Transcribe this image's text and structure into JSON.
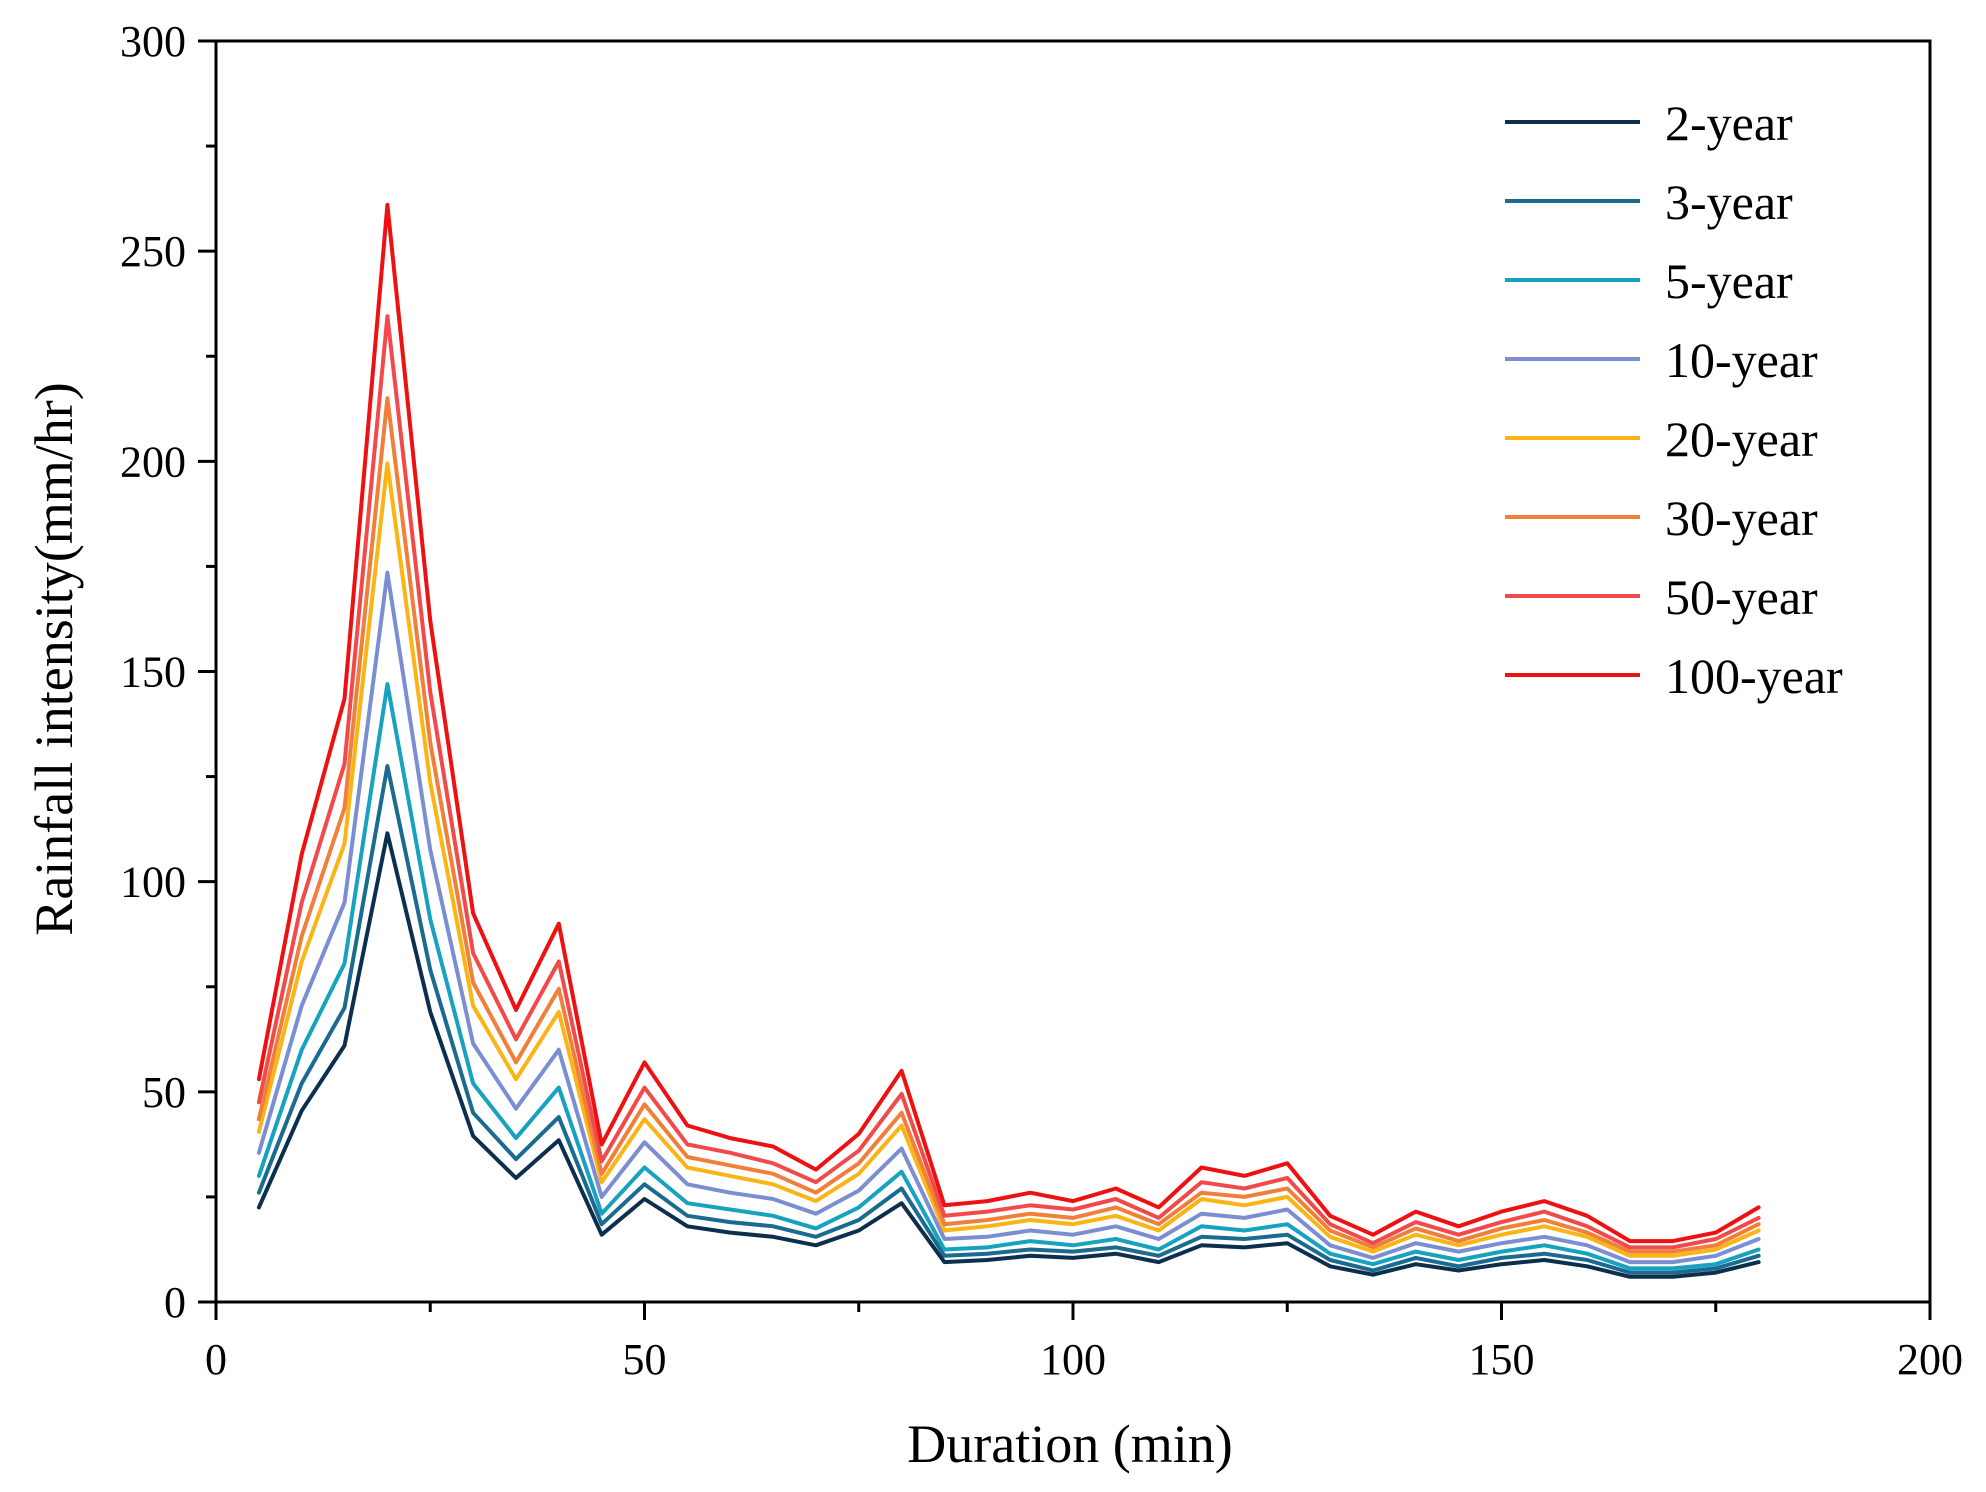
{
  "chart_data": {
    "type": "line",
    "title": "",
    "xlabel": "Duration (min)",
    "ylabel": "Rainfall intensity(mm/hr)",
    "xlim": [
      0,
      200
    ],
    "ylim": [
      0,
      300
    ],
    "xticks": [
      0,
      50,
      100,
      150,
      200
    ],
    "yticks": [
      0,
      50,
      100,
      150,
      200,
      250,
      300
    ],
    "grid": false,
    "legend_position": "top-right",
    "x": [
      5,
      10,
      15,
      20,
      25,
      30,
      35,
      40,
      45,
      50,
      55,
      60,
      65,
      70,
      75,
      80,
      85,
      90,
      95,
      100,
      105,
      110,
      115,
      120,
      125,
      130,
      135,
      140,
      145,
      150,
      155,
      160,
      165,
      170,
      175,
      180
    ],
    "series": [
      {
        "name": "2-year",
        "color": "#0d2f4f",
        "values": [
          22.5,
          45.5,
          61,
          111.5,
          69,
          39.5,
          29.5,
          38.5,
          16,
          24.5,
          18,
          16.5,
          15.5,
          13.5,
          17,
          23.5,
          9.5,
          10,
          11,
          10.5,
          11.5,
          9.5,
          13.5,
          13,
          14,
          8.5,
          6.5,
          9,
          7.5,
          9,
          10,
          8.5,
          6,
          6,
          7,
          9.5
        ]
      },
      {
        "name": "3-year",
        "color": "#1a6b8f",
        "values": [
          26,
          52,
          70,
          127.5,
          79,
          45,
          34,
          44,
          18.5,
          28,
          20.5,
          19,
          18,
          15.5,
          19.5,
          27,
          11,
          11.5,
          12.5,
          12,
          13,
          11,
          15.5,
          15,
          16,
          10,
          7.5,
          10.5,
          8.5,
          10.5,
          11.5,
          10,
          7,
          7,
          8,
          11
        ]
      },
      {
        "name": "5-year",
        "color": "#17a2c0",
        "values": [
          30,
          60,
          80.5,
          147,
          91,
          52,
          39,
          51,
          21,
          32,
          23.5,
          22,
          20.5,
          17.5,
          22.5,
          31,
          12.5,
          13,
          14.5,
          13.5,
          15,
          12.5,
          18,
          17,
          18.5,
          11.5,
          9,
          12,
          10,
          12,
          13.5,
          11.5,
          8,
          8,
          9,
          12.5
        ]
      },
      {
        "name": "10-year",
        "color": "#7b8ed1",
        "values": [
          35.5,
          70.5,
          95,
          173.5,
          107.5,
          61.5,
          46,
          60,
          25,
          38,
          28,
          26,
          24.5,
          21,
          26.5,
          36.5,
          15,
          15.5,
          17,
          16,
          18,
          15,
          21,
          20,
          22,
          13.5,
          10.5,
          14,
          12,
          14,
          15.5,
          13.5,
          9.5,
          9.5,
          11,
          15
        ]
      },
      {
        "name": "20-year",
        "color": "#fbb416",
        "values": [
          40.5,
          81,
          109,
          199.5,
          123.5,
          70.5,
          53,
          69,
          28.5,
          43.5,
          32,
          30,
          28,
          24,
          30.5,
          42,
          17,
          18,
          19.5,
          18.5,
          20.5,
          17,
          24.5,
          23,
          25,
          15.5,
          12,
          16,
          13.5,
          16,
          18,
          15.5,
          11,
          11,
          12.5,
          17
        ]
      },
      {
        "name": "30-year",
        "color": "#f07f3c",
        "values": [
          43.5,
          87,
          117.5,
          215,
          133,
          76,
          57,
          74.5,
          30.5,
          47,
          34.5,
          32.5,
          30.5,
          26,
          33,
          45,
          18.5,
          19.5,
          21,
          20,
          22.5,
          18.5,
          26,
          25,
          27,
          17,
          13,
          17.5,
          14.5,
          17.5,
          19.5,
          16.5,
          12,
          12,
          13.5,
          18.5
        ]
      },
      {
        "name": "50-year",
        "color": "#f24a4a",
        "values": [
          47.5,
          95,
          128,
          234.5,
          145,
          83,
          62.5,
          81,
          33.5,
          51,
          37.5,
          35.5,
          33,
          28.5,
          36,
          49.5,
          20.5,
          21.5,
          23,
          22,
          24.5,
          20,
          28.5,
          27,
          29.5,
          18.5,
          14,
          19,
          16,
          19,
          21.5,
          18,
          13,
          13,
          15,
          20
        ]
      },
      {
        "name": "100-year",
        "color": "#ee1111",
        "values": [
          53,
          106.5,
          143.5,
          261,
          162,
          92.5,
          69.5,
          90,
          37.5,
          57,
          42,
          39,
          37,
          31.5,
          40,
          55,
          23,
          24,
          26,
          24,
          27,
          22.5,
          32,
          30,
          33,
          20.5,
          16,
          21.5,
          18,
          21.5,
          24,
          20.5,
          14.5,
          14.5,
          16.5,
          22.5
        ]
      }
    ]
  }
}
